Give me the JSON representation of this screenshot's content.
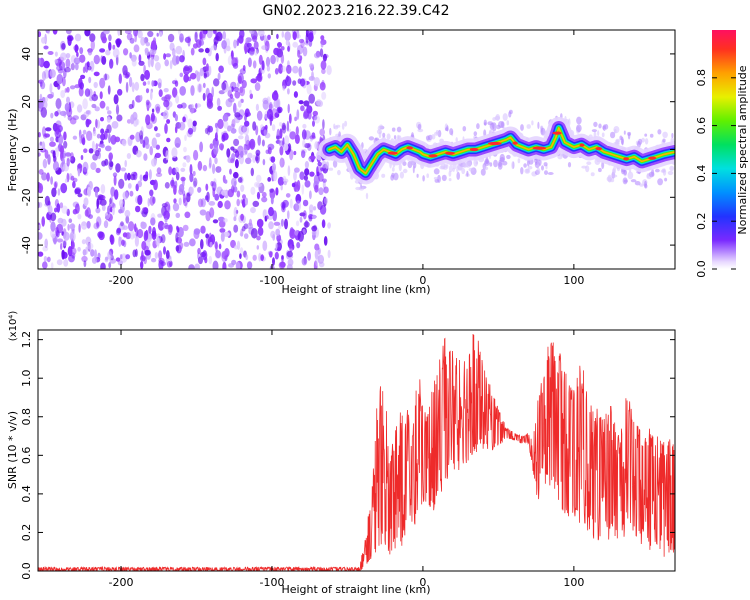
{
  "title": "GN02.2023.216.22.39.C42",
  "chart_data": [
    {
      "type": "heatmap",
      "xlabel": "Height of straight line (km)",
      "ylabel": "Frequency (Hz)",
      "xlim": [
        -255,
        167
      ],
      "ylim": [
        -50,
        50
      ],
      "xticks": [
        -200,
        -100,
        0,
        100
      ],
      "xtick_labels": [
        "-200",
        "-100",
        "0",
        "100"
      ],
      "yticks": [
        -40,
        -20,
        0,
        20,
        40
      ],
      "ytick_labels": [
        "-40",
        "-20",
        "0",
        "20",
        "40"
      ],
      "noise_region_x": [
        -255,
        -62
      ],
      "ridge": {
        "x": [
          -62,
          -58,
          -54,
          -50,
          -46,
          -42,
          -38,
          -34,
          -30,
          -26,
          -22,
          -18,
          -14,
          -10,
          -6,
          -2,
          0,
          5,
          10,
          15,
          20,
          25,
          30,
          35,
          40,
          45,
          50,
          55,
          58,
          62,
          66,
          70,
          75,
          80,
          85,
          88,
          90,
          92,
          94,
          97,
          100,
          105,
          110,
          115,
          120,
          125,
          130,
          135,
          140,
          145,
          150,
          155,
          160,
          167
        ],
        "y": [
          0,
          1,
          -1,
          2,
          -2,
          -8,
          -10,
          -6,
          -2,
          0,
          -1,
          -2,
          0,
          1,
          0,
          -1,
          -2,
          -3,
          -2,
          -1,
          -2,
          -1,
          0,
          0,
          1,
          2,
          3,
          4,
          5,
          2,
          1,
          0,
          1,
          0,
          1,
          5,
          9,
          6,
          3,
          2,
          1,
          2,
          0,
          1,
          -1,
          -2,
          -3,
          -4,
          -3,
          -5,
          -4,
          -3,
          -2,
          -1
        ]
      },
      "grid": false,
      "colorbar": {
        "label": "Normalized spectral amplitude",
        "range": [
          0,
          1
        ],
        "ticks": [
          0.0,
          0.2,
          0.4,
          0.6,
          0.8
        ],
        "tick_labels": [
          "0.0",
          "0.2",
          "0.4",
          "0.6",
          "0.8"
        ]
      }
    },
    {
      "type": "line",
      "xlabel": "Height of straight line (km)",
      "ylabel": "SNR (10 * v/v)",
      "y_multiplier": "(x10⁴)",
      "xlim": [
        -255,
        167
      ],
      "ylim": [
        0,
        1.25
      ],
      "xticks": [
        -200,
        -100,
        0,
        100
      ],
      "xtick_labels": [
        "-200",
        "-100",
        "0",
        "100"
      ],
      "yticks": [
        0.0,
        0.2,
        0.4,
        0.6,
        0.8,
        1.0,
        1.2
      ],
      "ytick_labels": [
        "0.0",
        "0.2",
        "0.4",
        "0.6",
        "0.8",
        "1.0",
        "1.2"
      ],
      "grid": false,
      "series": [
        {
          "color": "#ee2a2a",
          "x": [
            -255,
            -200,
            -100,
            -42,
            -38,
            -34,
            -30,
            -26,
            -22,
            -18,
            -14,
            -10,
            -6,
            -2,
            2,
            6,
            10,
            14,
            18,
            22,
            26,
            30,
            34,
            38,
            42,
            46,
            50,
            55,
            60,
            65,
            70,
            73,
            76,
            80,
            84,
            88,
            92,
            96,
            100,
            105,
            110,
            115,
            120,
            125,
            130,
            135,
            140,
            145,
            150,
            155,
            160,
            167
          ],
          "y": [
            0.01,
            0.01,
            0.01,
            0.01,
            0.08,
            0.2,
            0.35,
            0.48,
            0.3,
            0.4,
            0.45,
            0.5,
            0.52,
            0.58,
            0.62,
            0.6,
            0.66,
            0.7,
            0.78,
            0.8,
            0.82,
            0.85,
            0.88,
            0.86,
            0.8,
            0.76,
            0.72,
            0.7,
            0.7,
            0.68,
            0.68,
            0.6,
            0.65,
            0.8,
            0.85,
            0.82,
            0.75,
            0.7,
            0.62,
            0.58,
            0.55,
            0.5,
            0.48,
            0.47,
            0.46,
            0.5,
            0.52,
            0.45,
            0.42,
            0.45,
            0.4,
            0.42
          ],
          "envelope_max": [
            0.02,
            0.02,
            0.02,
            0.02,
            0.2,
            0.42,
            0.95,
            1.05,
            0.62,
            0.75,
            0.85,
            0.9,
            0.95,
            1.0,
            0.8,
            0.95,
            1.05,
            1.22,
            1.18,
            1.1,
            1.2,
            1.15,
            1.25,
            1.2,
            1.0,
            0.95,
            0.85,
            0.75,
            0.72,
            0.7,
            0.72,
            0.68,
            0.9,
            1.05,
            1.22,
            1.2,
            1.1,
            1.0,
            0.95,
            1.15,
            0.9,
            0.85,
            0.8,
            0.88,
            0.7,
            0.95,
            0.8,
            0.72,
            0.75,
            0.7,
            0.68,
            0.7
          ],
          "envelope_min": [
            0.0,
            0.0,
            0.0,
            0.0,
            0.02,
            0.06,
            0.1,
            0.15,
            0.08,
            0.1,
            0.12,
            0.18,
            0.22,
            0.28,
            0.35,
            0.3,
            0.35,
            0.45,
            0.5,
            0.48,
            0.55,
            0.55,
            0.6,
            0.62,
            0.6,
            0.62,
            0.65,
            0.68,
            0.68,
            0.66,
            0.66,
            0.5,
            0.35,
            0.45,
            0.4,
            0.35,
            0.3,
            0.28,
            0.25,
            0.22,
            0.2,
            0.15,
            0.18,
            0.15,
            0.12,
            0.18,
            0.2,
            0.12,
            0.1,
            0.12,
            0.05,
            0.1
          ]
        }
      ]
    }
  ]
}
